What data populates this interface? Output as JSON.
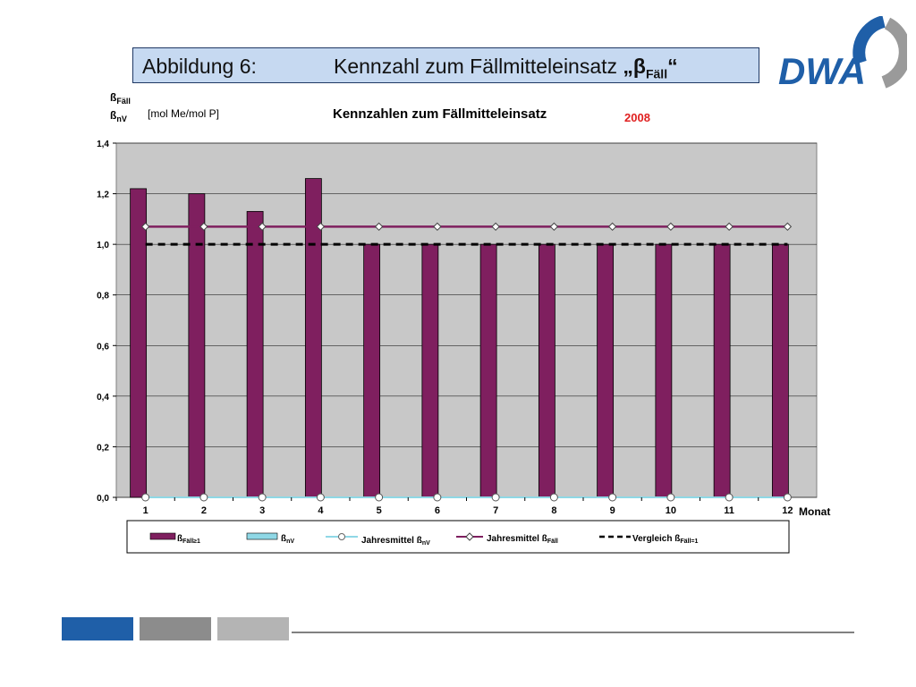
{
  "header": {
    "label": "Abbildung 6:",
    "caption": "Kennzahl zum Fällmitteleinsatz",
    "symbol_open": "„β",
    "symbol_sub": "Fäll",
    "symbol_close": "“"
  },
  "logo": {
    "text": "DWA",
    "colors": {
      "blue": "#1f5fa8",
      "gray": "#9a9a9a"
    }
  },
  "chart_data": {
    "type": "bar",
    "title": "Kennzahlen zum Fällmitteleinsatz",
    "year": "2008",
    "ylabel": [
      "ßFäll",
      "ßnV"
    ],
    "yunit": "[mol Me/mol P]",
    "xlabel": "Monat",
    "categories": [
      "1",
      "2",
      "3",
      "4",
      "5",
      "6",
      "7",
      "8",
      "9",
      "10",
      "11",
      "12"
    ],
    "ylim": [
      0,
      1.4
    ],
    "yticks": [
      "0,0",
      "0,2",
      "0,4",
      "0,6",
      "0,8",
      "1,0",
      "1,2",
      "1,4"
    ],
    "grid": true,
    "legend_position": "bottom",
    "series": [
      {
        "name": "ßFäll≥1",
        "type": "bar",
        "color": "#7f1f5f",
        "values": [
          1.22,
          1.2,
          1.13,
          1.26,
          1.0,
          1.0,
          1.0,
          1.0,
          1.0,
          1.0,
          1.0,
          1.0
        ]
      },
      {
        "name": "ßnV",
        "type": "bar",
        "color": "#8fd8e6",
        "values": [
          0,
          0,
          0,
          0,
          0,
          0,
          0,
          0,
          0,
          0,
          0,
          0
        ]
      },
      {
        "name": "Jahresmittel ßnV",
        "type": "line",
        "marker": "circle",
        "color": "#8fd8e6",
        "values": [
          0,
          0,
          0,
          0,
          0,
          0,
          0,
          0,
          0,
          0,
          0,
          0
        ]
      },
      {
        "name": "Jahresmittel ßFäll",
        "type": "line",
        "marker": "diamond",
        "color": "#7f1f5f",
        "values": [
          1.07,
          1.07,
          1.07,
          1.07,
          1.07,
          1.07,
          1.07,
          1.07,
          1.07,
          1.07,
          1.07,
          1.07
        ]
      },
      {
        "name": "Vergleich ßFäll=1",
        "type": "line",
        "dash": true,
        "color": "#000000",
        "values": [
          1,
          1,
          1,
          1,
          1,
          1,
          1,
          1,
          1,
          1,
          1,
          1
        ]
      }
    ]
  },
  "footer": {
    "colors": [
      "#1f5fa8",
      "#8c8c8c",
      "#b4b4b4"
    ]
  }
}
